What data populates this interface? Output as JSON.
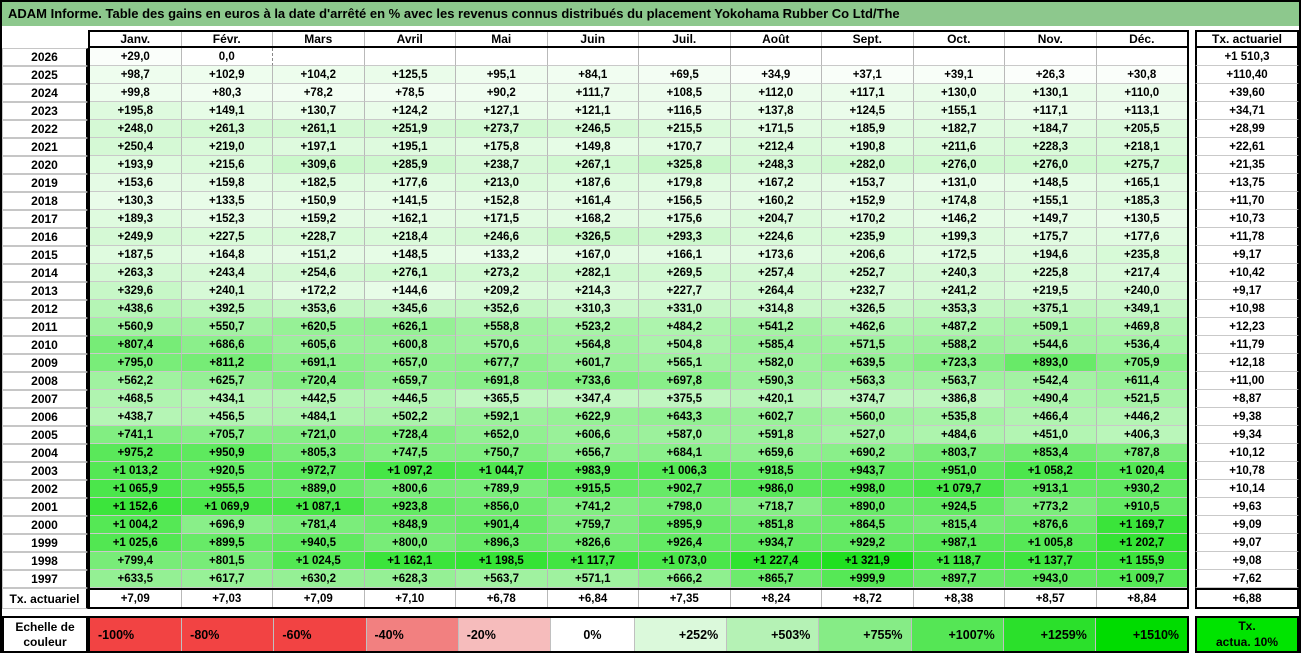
{
  "chart_data": {
    "type": "heatmap",
    "title": "ADAM Informe. Table des gains en euros à la date d'arrêté en % avec les revenus connus distribués du placement Yokohama Rubber Co Ltd/The",
    "columns": [
      "Janv.",
      "Févr.",
      "Mars",
      "Avril",
      "Mai",
      "Juin",
      "Juil.",
      "Août",
      "Sept.",
      "Oct.",
      "Nov.",
      "Déc."
    ],
    "tx_column_header": "Tx. actuariel",
    "value_domain": [
      0,
      1510.3
    ],
    "colors": {
      "title_bg": "#8DC88D",
      "zero": "#FFFFFF",
      "max_green": "#00DC00",
      "strong_red": "#F24343"
    },
    "rows": [
      {
        "year": "2026",
        "values": [
          "+29,0",
          "0,0",
          "",
          "",
          "",
          "",
          "",
          "",
          "",
          "",
          "",
          ""
        ],
        "tx": "+1 510,3"
      },
      {
        "year": "2025",
        "values": [
          "+98,7",
          "+102,9",
          "+104,2",
          "+125,5",
          "+95,1",
          "+84,1",
          "+69,5",
          "+34,9",
          "+37,1",
          "+39,1",
          "+26,3",
          "+30,8"
        ],
        "tx": "+110,40"
      },
      {
        "year": "2024",
        "values": [
          "+99,8",
          "+80,3",
          "+78,2",
          "+78,5",
          "+90,2",
          "+111,7",
          "+108,5",
          "+112,0",
          "+117,1",
          "+130,0",
          "+130,1",
          "+110,0"
        ],
        "tx": "+39,60"
      },
      {
        "year": "2023",
        "values": [
          "+195,8",
          "+149,1",
          "+130,7",
          "+124,2",
          "+127,1",
          "+121,1",
          "+116,5",
          "+137,8",
          "+124,5",
          "+155,1",
          "+117,1",
          "+113,1"
        ],
        "tx": "+34,71"
      },
      {
        "year": "2022",
        "values": [
          "+248,0",
          "+261,3",
          "+261,1",
          "+251,9",
          "+273,7",
          "+246,5",
          "+215,5",
          "+171,5",
          "+185,9",
          "+182,7",
          "+184,7",
          "+205,5"
        ],
        "tx": "+28,99"
      },
      {
        "year": "2021",
        "values": [
          "+250,4",
          "+219,0",
          "+197,1",
          "+195,1",
          "+175,8",
          "+149,8",
          "+170,7",
          "+212,4",
          "+190,8",
          "+211,6",
          "+228,3",
          "+218,1"
        ],
        "tx": "+22,61"
      },
      {
        "year": "2020",
        "values": [
          "+193,9",
          "+215,6",
          "+309,6",
          "+285,9",
          "+238,7",
          "+267,1",
          "+325,8",
          "+248,3",
          "+282,0",
          "+276,0",
          "+276,0",
          "+275,7"
        ],
        "tx": "+21,35"
      },
      {
        "year": "2019",
        "values": [
          "+153,6",
          "+159,8",
          "+182,5",
          "+177,6",
          "+213,0",
          "+187,6",
          "+179,8",
          "+167,2",
          "+153,7",
          "+131,0",
          "+148,5",
          "+165,1"
        ],
        "tx": "+13,75"
      },
      {
        "year": "2018",
        "values": [
          "+130,3",
          "+133,5",
          "+150,9",
          "+141,5",
          "+152,8",
          "+161,4",
          "+156,5",
          "+160,2",
          "+152,9",
          "+174,8",
          "+155,1",
          "+185,3"
        ],
        "tx": "+11,70"
      },
      {
        "year": "2017",
        "values": [
          "+189,3",
          "+152,3",
          "+159,2",
          "+162,1",
          "+171,5",
          "+168,2",
          "+175,6",
          "+204,7",
          "+170,2",
          "+146,2",
          "+149,7",
          "+130,5"
        ],
        "tx": "+10,73"
      },
      {
        "year": "2016",
        "values": [
          "+249,9",
          "+227,5",
          "+228,7",
          "+218,4",
          "+246,6",
          "+326,5",
          "+293,3",
          "+224,6",
          "+235,9",
          "+199,3",
          "+175,7",
          "+177,6"
        ],
        "tx": "+11,78"
      },
      {
        "year": "2015",
        "values": [
          "+187,5",
          "+164,8",
          "+151,2",
          "+148,5",
          "+133,2",
          "+167,0",
          "+166,1",
          "+173,6",
          "+206,6",
          "+172,5",
          "+194,6",
          "+235,8"
        ],
        "tx": "+9,17"
      },
      {
        "year": "2014",
        "values": [
          "+263,3",
          "+243,4",
          "+254,6",
          "+276,1",
          "+273,2",
          "+282,1",
          "+269,5",
          "+257,4",
          "+252,7",
          "+240,3",
          "+225,8",
          "+217,4"
        ],
        "tx": "+10,42"
      },
      {
        "year": "2013",
        "values": [
          "+329,6",
          "+240,1",
          "+172,2",
          "+144,6",
          "+209,2",
          "+214,3",
          "+227,7",
          "+264,4",
          "+232,7",
          "+241,2",
          "+219,5",
          "+240,0"
        ],
        "tx": "+9,17"
      },
      {
        "year": "2012",
        "values": [
          "+438,6",
          "+392,5",
          "+353,6",
          "+345,6",
          "+352,6",
          "+310,3",
          "+331,0",
          "+314,8",
          "+326,5",
          "+353,3",
          "+375,1",
          "+349,1"
        ],
        "tx": "+10,98"
      },
      {
        "year": "2011",
        "values": [
          "+560,9",
          "+550,7",
          "+620,5",
          "+626,1",
          "+558,8",
          "+523,2",
          "+484,2",
          "+541,2",
          "+462,6",
          "+487,2",
          "+509,1",
          "+469,8"
        ],
        "tx": "+12,23"
      },
      {
        "year": "2010",
        "values": [
          "+807,4",
          "+686,6",
          "+605,6",
          "+600,8",
          "+570,6",
          "+564,8",
          "+504,8",
          "+585,4",
          "+571,5",
          "+588,2",
          "+544,6",
          "+536,4"
        ],
        "tx": "+11,79"
      },
      {
        "year": "2009",
        "values": [
          "+795,0",
          "+811,2",
          "+691,1",
          "+657,0",
          "+677,7",
          "+601,7",
          "+565,1",
          "+582,0",
          "+639,5",
          "+723,3",
          "+893,0",
          "+705,9"
        ],
        "tx": "+12,18"
      },
      {
        "year": "2008",
        "values": [
          "+562,2",
          "+625,7",
          "+720,4",
          "+659,7",
          "+691,8",
          "+733,6",
          "+697,8",
          "+590,3",
          "+563,3",
          "+563,7",
          "+542,4",
          "+611,4"
        ],
        "tx": "+11,00"
      },
      {
        "year": "2007",
        "values": [
          "+468,5",
          "+434,1",
          "+442,5",
          "+446,5",
          "+365,5",
          "+347,4",
          "+375,5",
          "+420,1",
          "+374,7",
          "+386,8",
          "+490,4",
          "+521,5"
        ],
        "tx": "+8,87"
      },
      {
        "year": "2006",
        "values": [
          "+438,7",
          "+456,5",
          "+484,1",
          "+502,2",
          "+592,1",
          "+622,9",
          "+643,3",
          "+602,7",
          "+560,0",
          "+535,8",
          "+466,4",
          "+446,2"
        ],
        "tx": "+9,38"
      },
      {
        "year": "2005",
        "values": [
          "+741,1",
          "+705,7",
          "+721,0",
          "+728,4",
          "+652,0",
          "+606,6",
          "+587,0",
          "+591,8",
          "+527,0",
          "+484,6",
          "+451,0",
          "+406,3"
        ],
        "tx": "+9,34"
      },
      {
        "year": "2004",
        "values": [
          "+975,2",
          "+950,9",
          "+805,3",
          "+747,5",
          "+750,7",
          "+656,7",
          "+684,1",
          "+659,6",
          "+690,2",
          "+803,7",
          "+853,4",
          "+787,8"
        ],
        "tx": "+10,12"
      },
      {
        "year": "2003",
        "values": [
          "+1 013,2",
          "+920,5",
          "+972,7",
          "+1 097,2",
          "+1 044,7",
          "+983,9",
          "+1 006,3",
          "+918,5",
          "+943,7",
          "+951,0",
          "+1 058,2",
          "+1 020,4"
        ],
        "tx": "+10,78"
      },
      {
        "year": "2002",
        "values": [
          "+1 065,9",
          "+955,5",
          "+889,0",
          "+800,6",
          "+789,9",
          "+915,5",
          "+902,7",
          "+986,0",
          "+998,0",
          "+1 079,7",
          "+913,1",
          "+930,2"
        ],
        "tx": "+10,14"
      },
      {
        "year": "2001",
        "values": [
          "+1 152,6",
          "+1 069,9",
          "+1 087,1",
          "+923,8",
          "+856,0",
          "+741,2",
          "+798,0",
          "+718,7",
          "+890,0",
          "+924,5",
          "+773,2",
          "+910,5"
        ],
        "tx": "+9,63"
      },
      {
        "year": "2000",
        "values": [
          "+1 004,2",
          "+696,9",
          "+781,4",
          "+848,9",
          "+901,4",
          "+759,7",
          "+895,9",
          "+851,8",
          "+864,5",
          "+815,4",
          "+876,6",
          "+1 169,7"
        ],
        "tx": "+9,09"
      },
      {
        "year": "1999",
        "values": [
          "+1 025,6",
          "+899,5",
          "+940,5",
          "+800,0",
          "+896,3",
          "+826,6",
          "+926,4",
          "+934,7",
          "+929,2",
          "+987,1",
          "+1 005,8",
          "+1 202,7"
        ],
        "tx": "+9,07"
      },
      {
        "year": "1998",
        "values": [
          "+799,4",
          "+801,5",
          "+1 024,5",
          "+1 162,1",
          "+1 198,5",
          "+1 117,7",
          "+1 073,0",
          "+1 227,4",
          "+1 321,9",
          "+1 118,7",
          "+1 137,7",
          "+1 155,9"
        ],
        "tx": "+9,08"
      },
      {
        "year": "1997",
        "values": [
          "+633,5",
          "+617,7",
          "+630,2",
          "+628,3",
          "+563,7",
          "+571,1",
          "+666,2",
          "+865,7",
          "+999,9",
          "+897,7",
          "+943,0",
          "+1 009,7"
        ],
        "tx": "+7,62"
      }
    ],
    "tx_row": {
      "label": "Tx. actuariel",
      "values": [
        "+7,09",
        "+7,03",
        "+7,09",
        "+7,10",
        "+6,78",
        "+6,84",
        "+7,35",
        "+8,24",
        "+8,72",
        "+8,38",
        "+8,57",
        "+8,84"
      ],
      "tx": "+6,88"
    },
    "color_scale": {
      "label_line1": "Echelle de",
      "label_line2": "couleur",
      "cells": [
        {
          "label": "-100%",
          "color": "#F24343",
          "align": "left"
        },
        {
          "label": "-80%",
          "color": "#F24343",
          "align": "left"
        },
        {
          "label": "-60%",
          "color": "#F24343",
          "align": "left"
        },
        {
          "label": "-40%",
          "color": "#F28080",
          "align": "left"
        },
        {
          "label": "-20%",
          "color": "#F6BCBC",
          "align": "left"
        },
        {
          "label": "0%",
          "color": "#FFFFFF",
          "align": "center"
        },
        {
          "label": "+252%",
          "color": "#DBF9DB",
          "align": "right"
        },
        {
          "label": "+503%",
          "color": "#B5F2B5",
          "align": "right"
        },
        {
          "label": "+755%",
          "color": "#86EC86",
          "align": "right"
        },
        {
          "label": "+1007%",
          "color": "#55E655",
          "align": "right"
        },
        {
          "label": "+1259%",
          "color": "#2BE02B",
          "align": "right"
        },
        {
          "label": "+1510%",
          "color": "#00DC00",
          "align": "right"
        }
      ],
      "tx_cell": {
        "line1": "Tx.",
        "line2": "actua. 10%",
        "color": "#00E400"
      }
    }
  }
}
